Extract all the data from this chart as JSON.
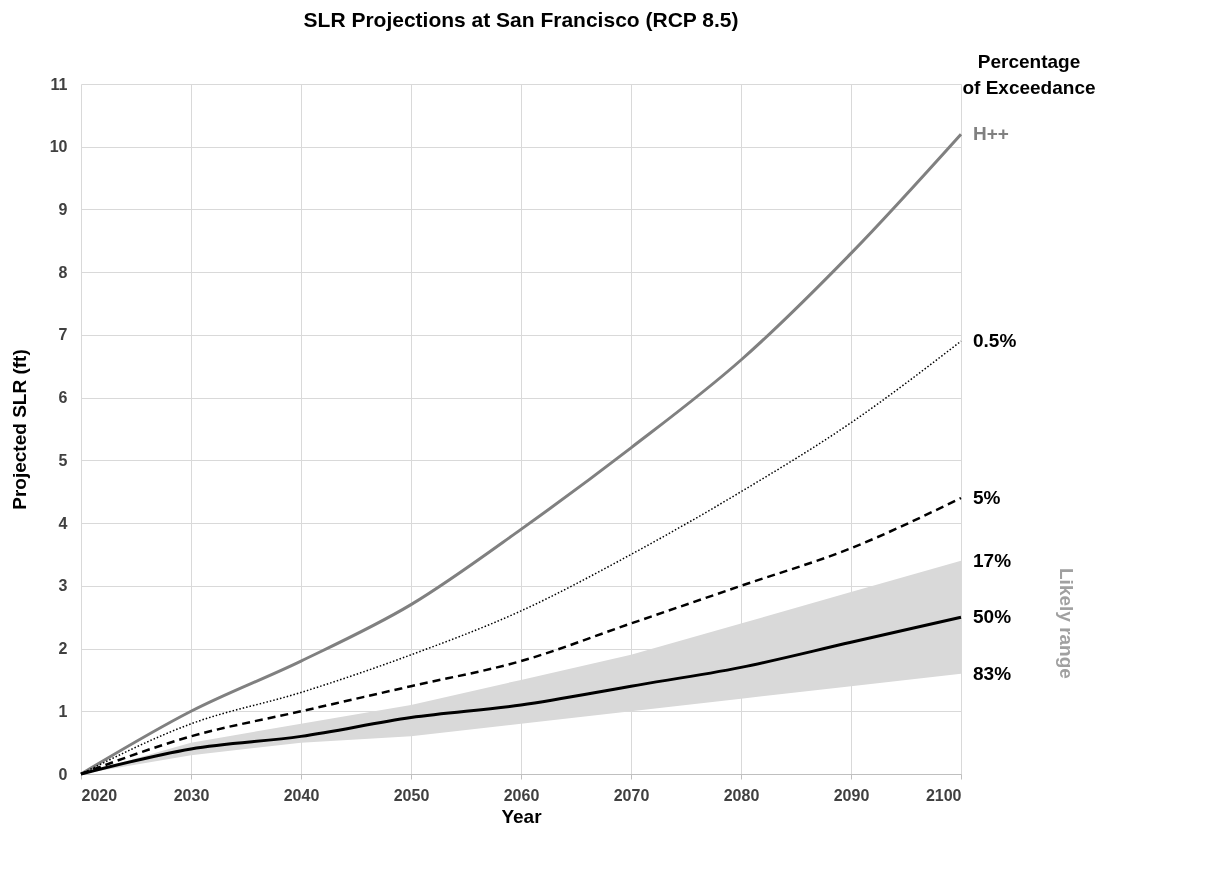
{
  "chart_data": {
    "type": "line",
    "title": "SLR Projections at San Francisco (RCP 8.5)",
    "xlabel": "Year",
    "ylabel": "Projected SLR (ft)",
    "legend_title": "Percentage of Exceedance",
    "x": [
      2020,
      2030,
      2040,
      2050,
      2060,
      2070,
      2080,
      2090,
      2100
    ],
    "series": [
      {
        "name": "H++",
        "color": "#808080",
        "line_style": "solid",
        "values": [
          0,
          1.0,
          1.8,
          2.7,
          3.9,
          5.2,
          6.6,
          8.3,
          10.2
        ]
      },
      {
        "name": "0.5%",
        "color": "#000000",
        "line_style": "dotted",
        "values": [
          0,
          0.8,
          1.3,
          1.9,
          2.6,
          3.5,
          4.5,
          5.6,
          6.9
        ]
      },
      {
        "name": "5%",
        "color": "#000000",
        "line_style": "dashed",
        "values": [
          0,
          0.6,
          1.0,
          1.4,
          1.8,
          2.4,
          3.0,
          3.6,
          4.4
        ]
      },
      {
        "name": "50%",
        "color": "#000000",
        "line_style": "solid",
        "values": [
          0,
          0.4,
          0.6,
          0.9,
          1.1,
          1.4,
          1.7,
          2.1,
          2.5
        ],
        "lower": [
          0,
          0.3,
          0.5,
          0.6,
          0.8,
          1.0,
          1.2,
          1.4,
          1.6
        ],
        "upper": [
          0,
          0.5,
          0.8,
          1.1,
          1.5,
          1.9,
          2.4,
          2.9,
          3.4
        ]
      }
    ],
    "annotations": [
      {
        "text": "17%",
        "x": 2100,
        "y": 3.4
      },
      {
        "text": "83%",
        "x": 2100,
        "y": 1.6
      },
      "Likely range"
    ],
    "xlim": [
      2020,
      2100
    ],
    "xticks": [
      2020,
      2030,
      2040,
      2050,
      2060,
      2070,
      2080,
      2090,
      2100
    ],
    "ylim": [
      0,
      11
    ],
    "yticks": [
      0,
      1,
      2,
      3,
      4,
      5,
      6,
      7,
      8,
      9,
      10,
      11
    ],
    "grid": true,
    "marker": "none"
  }
}
